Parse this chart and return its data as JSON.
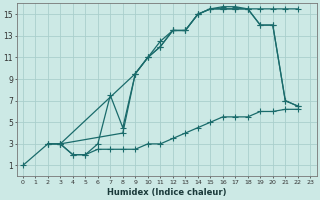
{
  "xlabel": "Humidex (Indice chaleur)",
  "bg_color": "#cce9e5",
  "grid_color": "#aacfcc",
  "line_color": "#1a6b6b",
  "xlim": [
    -0.5,
    23.5
  ],
  "ylim": [
    0,
    16
  ],
  "xticks": [
    0,
    1,
    2,
    3,
    4,
    5,
    6,
    7,
    8,
    9,
    10,
    11,
    12,
    13,
    14,
    15,
    16,
    17,
    18,
    19,
    20,
    21,
    22,
    23
  ],
  "yticks": [
    1,
    3,
    5,
    7,
    9,
    11,
    13,
    15
  ],
  "curve1_x": [
    2,
    3,
    9,
    10,
    11,
    12,
    13,
    14,
    15,
    16,
    17,
    18,
    19,
    20,
    21,
    22
  ],
  "curve1_y": [
    3,
    3,
    9.5,
    11,
    12.5,
    13.5,
    13.5,
    15,
    15.5,
    15.7,
    15.7,
    15.5,
    15.5,
    15.5,
    15.5,
    15.5
  ],
  "curve2_x": [
    2,
    3,
    8,
    9,
    10,
    11,
    12,
    13,
    14,
    15,
    16,
    17,
    18,
    19,
    20,
    21,
    22
  ],
  "curve2_y": [
    3,
    3,
    4,
    9.5,
    11,
    12,
    13.5,
    13.5,
    15,
    15.5,
    15.5,
    15.5,
    15.5,
    14,
    14,
    7,
    6.5
  ],
  "curve3_x": [
    3,
    4,
    5,
    6,
    7,
    8,
    9,
    10,
    11,
    12,
    13,
    14,
    15,
    16,
    17,
    18,
    19,
    20,
    21,
    22
  ],
  "curve3_y": [
    3,
    2,
    2,
    3,
    7.5,
    4.5,
    9.5,
    11,
    12,
    13.5,
    13.5,
    15,
    15.5,
    15.5,
    15.5,
    15.5,
    14,
    14,
    7,
    6.5
  ],
  "curve4_x": [
    0,
    2,
    3,
    4,
    5,
    6,
    7,
    8,
    9,
    10,
    11,
    12,
    13,
    14,
    15,
    16,
    17,
    18,
    19,
    20,
    21,
    22
  ],
  "curve4_y": [
    1,
    3,
    3,
    2,
    2,
    2.5,
    2.5,
    2.5,
    2.5,
    3,
    3,
    3.5,
    4,
    4.5,
    5,
    5.5,
    5.5,
    5.5,
    6,
    6,
    6.2,
    6.2
  ]
}
